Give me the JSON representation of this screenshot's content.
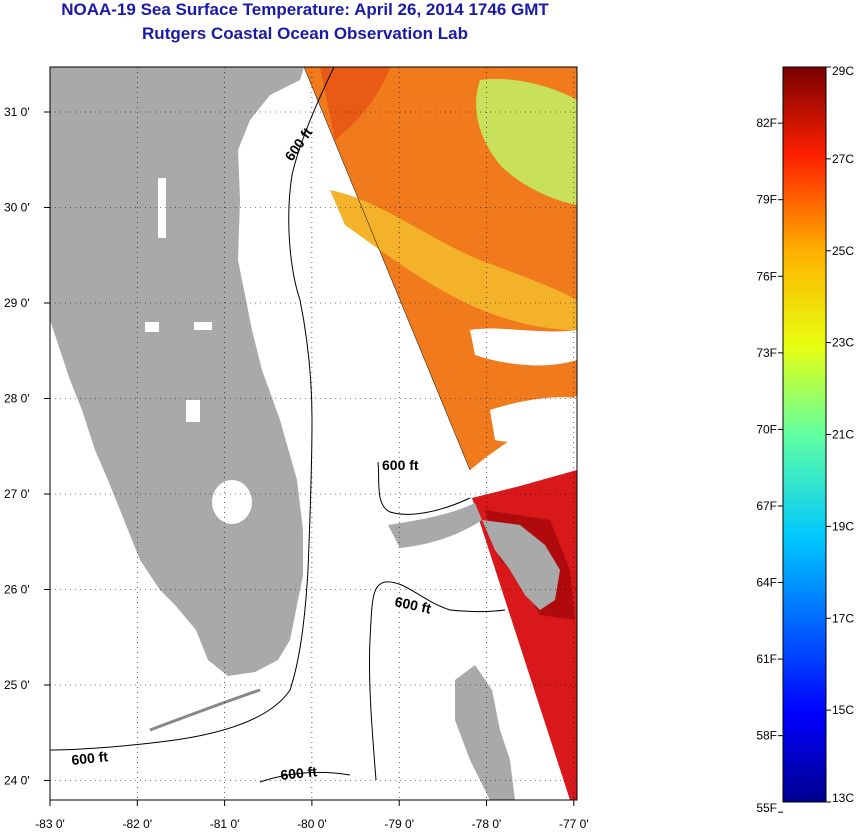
{
  "header": {
    "title": "NOAA-19 Sea Surface Temperature:  April 26, 2014 1746 GMT",
    "subtitle": "Rutgers Coastal Ocean Observation Lab"
  },
  "map": {
    "lat_ticks": [
      "31 0'",
      "30 0'",
      "29 0'",
      "28 0'",
      "27 0'",
      "26 0'",
      "25 0'",
      "24 0'"
    ],
    "lon_ticks": [
      "-83 0'",
      "-82 0'",
      "-81 0'",
      "-80 0'",
      "-79 0'",
      "-78 0'",
      "-77 0'"
    ],
    "lat_values": [
      31,
      30,
      29,
      28,
      27,
      26,
      25,
      24
    ],
    "lon_values": [
      -83,
      -82,
      -81,
      -80,
      -79,
      -78,
      -77
    ],
    "contour_labels": [
      "600 ft",
      "600 ft",
      "600 ft",
      "600 ft",
      "600 ft"
    ],
    "colors": {
      "land": "#a9a9a9",
      "no_data": "#ffffff",
      "grid": "#000000"
    }
  },
  "colorbar": {
    "celsius_labels": [
      "29C",
      "27C",
      "25C",
      "23C",
      "21C",
      "19C",
      "17C",
      "15C",
      "13C"
    ],
    "fahrenheit_labels": [
      "82F",
      "79F",
      "76F",
      "73F",
      "70F",
      "67F",
      "64F",
      "61F",
      "58F",
      "55F"
    ],
    "celsius_values": [
      29,
      27,
      25,
      23,
      21,
      19,
      17,
      15,
      13
    ],
    "fahrenheit_values": [
      82,
      79,
      76,
      73,
      70,
      67,
      64,
      61,
      58,
      55
    ],
    "range_c": [
      13,
      29
    ]
  }
}
